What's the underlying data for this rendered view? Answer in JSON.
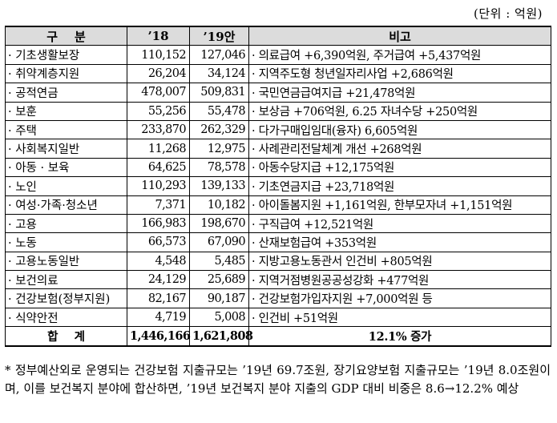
{
  "unit": "(단위 : 억원)",
  "header": {
    "category": "구    분",
    "y18": "’18",
    "y19": "’19안",
    "note": "비고"
  },
  "rows": [
    {
      "category": "기초생활보장",
      "y18": "110,152",
      "y19": "127,046",
      "note": "의료급여 +6,390억원, 주거급여 +5,437억원"
    },
    {
      "category": "취약계층지원",
      "y18": "26,204",
      "y19": "34,124",
      "note": "지역주도형 청년일자리사업 +2,686억원"
    },
    {
      "category": "공적연금",
      "y18": "478,007",
      "y19": "509,831",
      "note": "국민연금급여지급 +21,478억원"
    },
    {
      "category": "보훈",
      "y18": "55,256",
      "y19": "55,478",
      "note": "보상금 +706억원, 6.25 자녀수당 +250억원"
    },
    {
      "category": "주택",
      "y18": "233,870",
      "y19": "262,329",
      "note": "다가구매입임대(융자) 6,605억원"
    },
    {
      "category": "사회복지일반",
      "y18": "11,268",
      "y19": "12,975",
      "note": "사례관리전달체계 개선 +268억원"
    },
    {
      "category": "아동 · 보육",
      "y18": "64,625",
      "y19": "78,578",
      "note": "아동수당지급 +12,175억원"
    },
    {
      "category": "노인",
      "y18": "110,293",
      "y19": "139,133",
      "note": "기초연금지급 +23,718억원"
    },
    {
      "category": "여성·가족·청소년",
      "y18": "7,371",
      "y19": "10,182",
      "note": "아이돌봄지원 +1,161억원, 한부모자녀 +1,151억원"
    },
    {
      "category": "고용",
      "y18": "166,983",
      "y19": "198,670",
      "note": "구직급여 +12,521억원"
    },
    {
      "category": "노동",
      "y18": "66,573",
      "y19": "67,090",
      "note": "산재보험급여 +353억원"
    },
    {
      "category": "고용노동일반",
      "y18": "4,548",
      "y19": "5,485",
      "note": "지방고용노동관서 인건비 +805억원"
    },
    {
      "category": "보건의료",
      "y18": "24,129",
      "y19": "25,689",
      "note": "지역거점병원공공성강화 +477억원"
    },
    {
      "category": "건강보험(정부지원)",
      "y18": "82,167",
      "y19": "90,187",
      "note": "건강보험가입자지원 +7,000억원 등"
    },
    {
      "category": "식약안전",
      "y18": "4,719",
      "y19": "5,008",
      "note": "인건비 +51억원"
    }
  ],
  "total": {
    "category": "합    계",
    "y18": "1,446,166",
    "y19": "1,621,808",
    "note": "12.1% 증가"
  },
  "footnote": "* 정부예산외로 운영되는 건강보험 지출규모는 ’19년 69.7조원, 장기요양보험 지출규모는 ’19년 8.0조원이며, 이를 보건복지 분야에 합산하면, ’19년 보건복지 분야 지출의 GDP 대비 비중은 8.6→12.2% 예상"
}
